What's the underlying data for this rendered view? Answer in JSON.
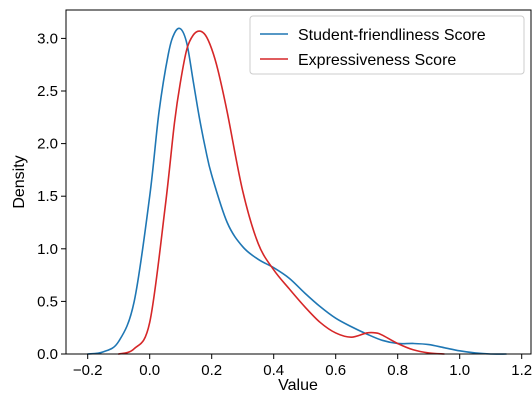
{
  "chart_data": {
    "type": "line",
    "title": "",
    "xlabel": "Value",
    "ylabel": "Density",
    "xlim": [
      -0.27,
      1.23
    ],
    "ylim": [
      0,
      3.27
    ],
    "xticks": [
      -0.2,
      0.0,
      0.2,
      0.4,
      0.6,
      0.8,
      1.0,
      1.2
    ],
    "xtick_labels": [
      "−0.2",
      "0.0",
      "0.2",
      "0.4",
      "0.6",
      "0.8",
      "1.0",
      "1.2"
    ],
    "yticks": [
      0.0,
      0.5,
      1.0,
      1.5,
      2.0,
      2.5,
      3.0
    ],
    "ytick_labels": [
      "0.0",
      "0.5",
      "1.0",
      "1.5",
      "2.0",
      "2.5",
      "3.0"
    ],
    "grid": false,
    "legend_position": "top-right",
    "series": [
      {
        "name": "Student-friendliness Score",
        "color": "#1f77b4",
        "x": [
          -0.2,
          -0.15,
          -0.1,
          -0.05,
          0.0,
          0.03,
          0.06,
          0.08,
          0.1,
          0.12,
          0.14,
          0.16,
          0.18,
          0.2,
          0.25,
          0.3,
          0.35,
          0.4,
          0.45,
          0.5,
          0.55,
          0.6,
          0.65,
          0.7,
          0.75,
          0.8,
          0.85,
          0.9,
          0.95,
          1.0,
          1.05,
          1.1,
          1.15
        ],
        "y": [
          0.0,
          0.02,
          0.12,
          0.5,
          1.5,
          2.3,
          2.85,
          3.05,
          3.09,
          2.95,
          2.6,
          2.25,
          1.95,
          1.7,
          1.25,
          1.02,
          0.9,
          0.82,
          0.72,
          0.58,
          0.45,
          0.34,
          0.26,
          0.19,
          0.13,
          0.1,
          0.1,
          0.09,
          0.06,
          0.03,
          0.01,
          0.0,
          0.0
        ]
      },
      {
        "name": "Expressiveness Score",
        "color": "#d62728",
        "x": [
          -0.1,
          -0.05,
          0.0,
          0.05,
          0.08,
          0.1,
          0.12,
          0.14,
          0.16,
          0.18,
          0.2,
          0.22,
          0.25,
          0.3,
          0.35,
          0.4,
          0.45,
          0.5,
          0.55,
          0.6,
          0.65,
          0.7,
          0.73,
          0.75,
          0.8,
          0.85,
          0.9,
          0.95
        ],
        "y": [
          0.0,
          0.05,
          0.3,
          1.4,
          2.2,
          2.6,
          2.9,
          3.03,
          3.07,
          3.03,
          2.9,
          2.7,
          2.3,
          1.55,
          1.05,
          0.8,
          0.62,
          0.45,
          0.3,
          0.2,
          0.16,
          0.2,
          0.2,
          0.18,
          0.1,
          0.04,
          0.01,
          0.0
        ]
      }
    ]
  }
}
